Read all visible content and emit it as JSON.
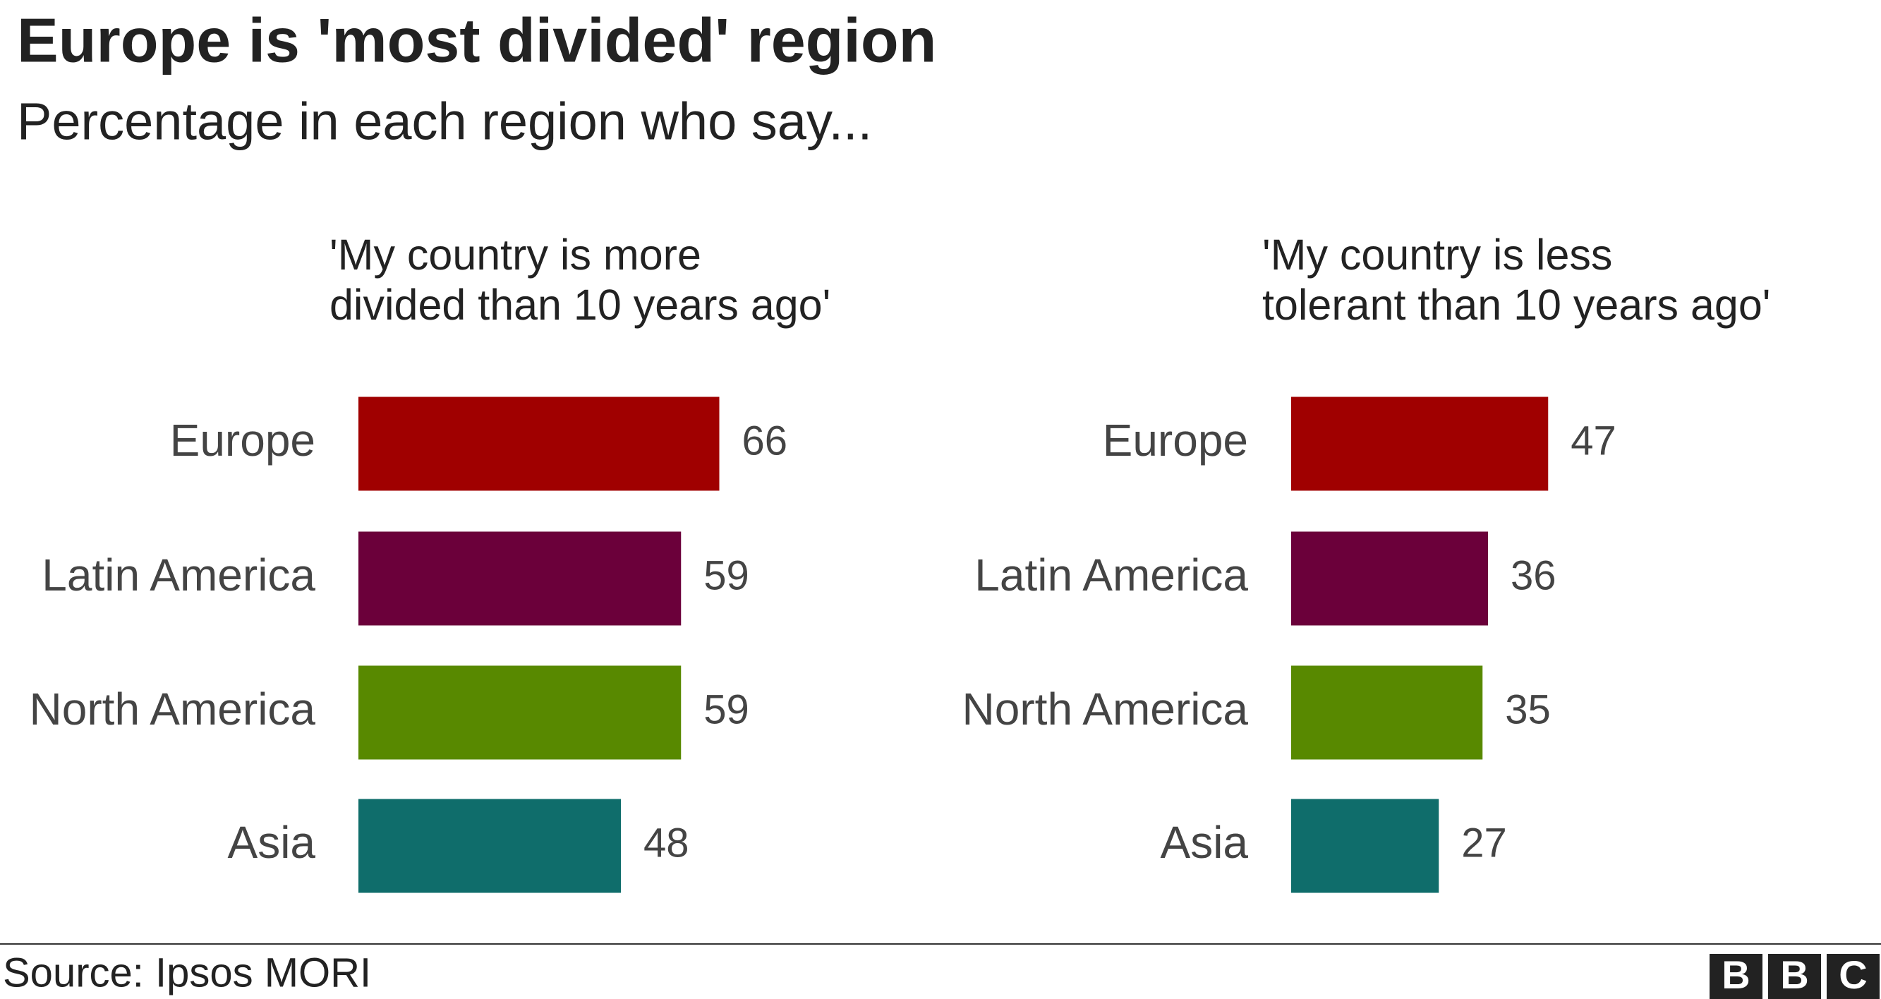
{
  "title": "Europe is 'most divided' region",
  "subtitle": "Percentage in each region who say...",
  "source": "Source: Ipsos MORI",
  "logo": [
    "B",
    "B",
    "C"
  ],
  "chart_data": [
    {
      "type": "bar",
      "orientation": "horizontal",
      "title": [
        "'My country is more",
        "divided than 10 years ago'"
      ],
      "categories": [
        "Europe",
        "Latin America",
        "North America",
        "Asia"
      ],
      "values": [
        66,
        59,
        59,
        48
      ],
      "colors": [
        "#a00000",
        "#6b003a",
        "#588900",
        "#0f6d6b"
      ]
    },
    {
      "type": "bar",
      "orientation": "horizontal",
      "title": [
        "'My country is less",
        "tolerant than 10 years ago'"
      ],
      "categories": [
        "Europe",
        "Latin America",
        "North America",
        "Asia"
      ],
      "values": [
        47,
        36,
        35,
        27
      ],
      "colors": [
        "#a00000",
        "#6b003a",
        "#588900",
        "#0f6d6b"
      ]
    }
  ]
}
